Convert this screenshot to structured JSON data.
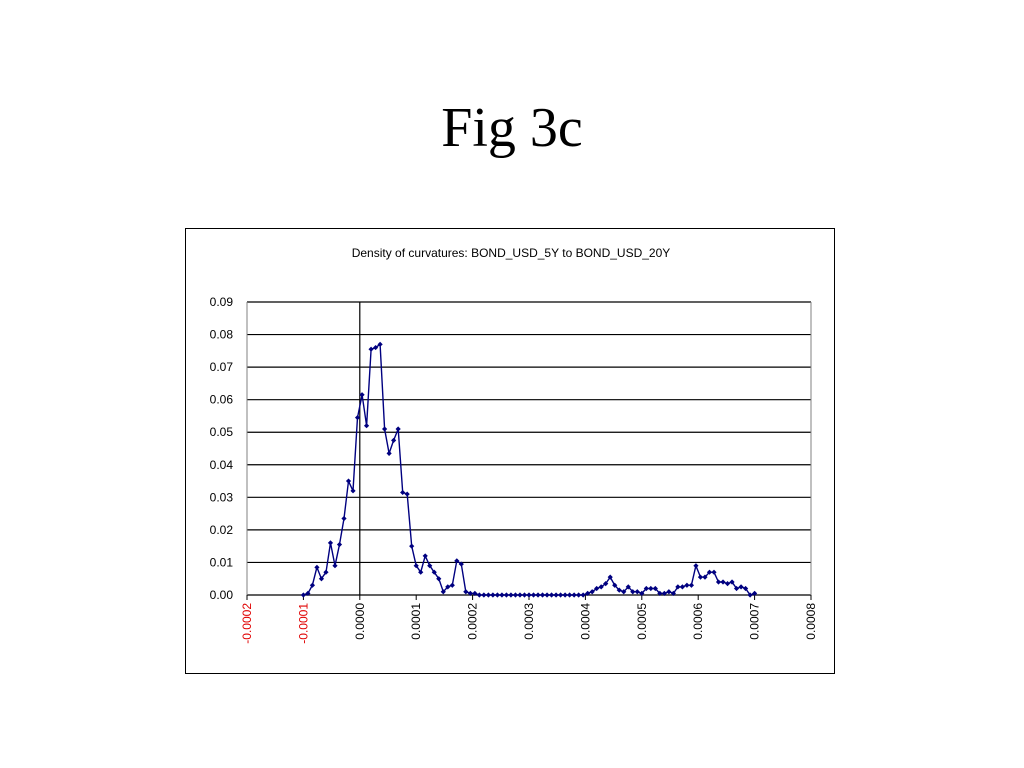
{
  "slide": {
    "title": "Fig 3c"
  },
  "chart_data": {
    "type": "line",
    "title": "Density of curvatures: BOND_USD_5Y   to BOND_USD_20Y",
    "xlabel": "",
    "ylabel": "",
    "xlim": [
      -0.0002,
      0.0008
    ],
    "ylim": [
      0,
      0.09
    ],
    "grid": "horizontal",
    "legend": "none",
    "x_ticks": [
      "-0.0002",
      "-0.0001",
      "0.0000",
      "0.0001",
      "0.0002",
      "0.0003",
      "0.0004",
      "0.0005",
      "0.0006",
      "0.0007",
      "0.0008"
    ],
    "x_tick_values": [
      -0.0002,
      -0.0001,
      0,
      0.0001,
      0.0002,
      0.0003,
      0.0004,
      0.0005,
      0.0006,
      0.0007,
      0.0008
    ],
    "y_ticks": [
      "0.00",
      "0.01",
      "0.02",
      "0.03",
      "0.04",
      "0.05",
      "0.06",
      "0.07",
      "0.08",
      "0.09"
    ],
    "y_tick_values": [
      0,
      0.01,
      0.02,
      0.03,
      0.04,
      0.05,
      0.06,
      0.07,
      0.08,
      0.09
    ],
    "colors": {
      "series": "#000080",
      "negative_tick": "#e00000",
      "tick": "#000000",
      "grid": "#000000"
    },
    "series": [
      {
        "x": [
          -0.0001,
          -9.2e-05,
          -8.4e-05,
          -7.6e-05,
          -6.8e-05,
          -6e-05,
          -5.2e-05,
          -4.4e-05,
          -3.6e-05,
          -2.8e-05,
          -2e-05,
          -1.2e-05,
          -4e-06,
          4e-06,
          1.2e-05,
          2e-05,
          2.8e-05,
          3.6e-05,
          4.4e-05,
          5.2e-05,
          6e-05,
          6.8e-05,
          7.6e-05,
          8.4e-05,
          9.2e-05,
          0.0001,
          0.000108,
          0.000116,
          0.000124,
          0.000132,
          0.00014,
          0.000148,
          0.000156,
          0.000164,
          0.000172,
          0.00018,
          0.000188,
          0.000196,
          0.000204,
          0.000212,
          0.00022,
          0.000228,
          0.000236,
          0.000244,
          0.000252,
          0.00026,
          0.000268,
          0.000276,
          0.000284,
          0.000292,
          0.0003,
          0.000308,
          0.000316,
          0.000324,
          0.000332,
          0.00034,
          0.000348,
          0.000356,
          0.000364,
          0.000372,
          0.00038,
          0.000388,
          0.000396,
          0.000404,
          0.000412,
          0.00042,
          0.000428,
          0.000436,
          0.000444,
          0.000452,
          0.00046,
          0.000468,
          0.000476,
          0.000484,
          0.000492,
          0.0005,
          0.000508,
          0.000516,
          0.000524,
          0.000532,
          0.00054,
          0.000548,
          0.000556,
          0.000564,
          0.000572,
          0.00058,
          0.000588,
          0.000596,
          0.000604,
          0.000612,
          0.00062,
          0.000628,
          0.000636,
          0.000644,
          0.000652,
          0.00066,
          0.000668,
          0.000676,
          0.000684,
          0.000692,
          0.0007
        ],
        "y": [
          0.0,
          0.0005,
          0.003,
          0.0085,
          0.005,
          0.007,
          0.016,
          0.009,
          0.0155,
          0.0235,
          0.035,
          0.032,
          0.0545,
          0.0615,
          0.052,
          0.0755,
          0.076,
          0.077,
          0.051,
          0.0435,
          0.0475,
          0.051,
          0.0315,
          0.031,
          0.015,
          0.009,
          0.007,
          0.012,
          0.009,
          0.007,
          0.005,
          0.001,
          0.0025,
          0.003,
          0.0105,
          0.0095,
          0.001,
          0.0005,
          0.0005,
          0.0,
          0.0,
          0.0,
          0.0,
          0.0,
          0.0,
          0.0,
          0.0,
          0.0,
          0.0,
          0.0,
          0.0,
          0.0,
          0.0,
          0.0,
          0.0,
          0.0,
          0.0,
          0.0,
          0.0,
          0.0,
          0.0,
          0.0,
          0.0,
          0.0005,
          0.001,
          0.002,
          0.0025,
          0.0035,
          0.0055,
          0.003,
          0.0015,
          0.001,
          0.0025,
          0.001,
          0.001,
          0.0005,
          0.002,
          0.002,
          0.002,
          0.0005,
          0.0005,
          0.001,
          0.0005,
          0.0025,
          0.0025,
          0.003,
          0.003,
          0.009,
          0.0055,
          0.0055,
          0.007,
          0.007,
          0.004,
          0.004,
          0.0035,
          0.004,
          0.002,
          0.0025,
          0.002,
          0.0,
          0.0005
        ]
      }
    ]
  }
}
